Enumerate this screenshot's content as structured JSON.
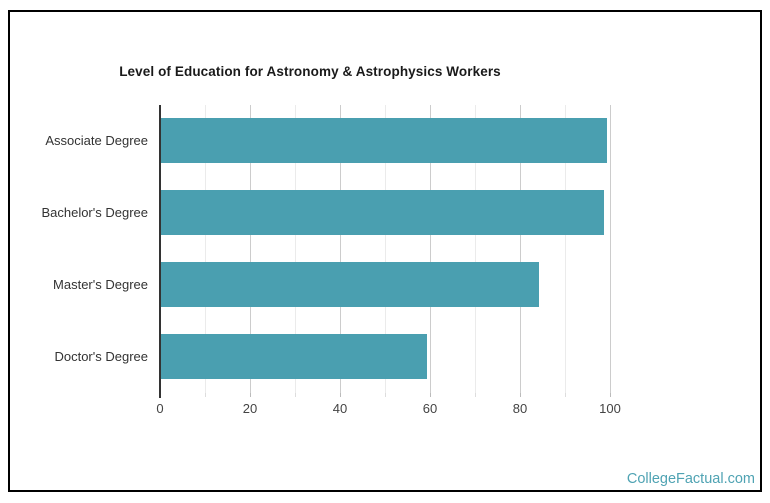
{
  "chart_data": {
    "type": "bar",
    "orientation": "horizontal",
    "title": "Level of Education for Astronomy & Astrophysics Workers",
    "categories": [
      "Associate Degree",
      "Bachelor's Degree",
      "Master's Degree",
      "Doctor's Degree"
    ],
    "values": [
      99,
      98.5,
      84,
      59
    ],
    "xlabel": "",
    "ylabel": "",
    "xlim": [
      0,
      110
    ],
    "xticks": [
      0,
      20,
      40,
      60,
      80,
      100
    ],
    "minor_grid_step": 10,
    "grid": "vertical",
    "legend_position": "none",
    "bar_color": "#4a9fb0"
  },
  "footer": {
    "brand": "CollegeFactual.com"
  },
  "colors": {
    "bar": "#4a9fb0",
    "axis_line": "#333333",
    "grid_major": "#cccccc",
    "grid_minor": "#ebebeb",
    "tick_label": "#444444",
    "category_label": "#333333",
    "title": "#1a1a1a",
    "frame_border": "#000000",
    "brand_link": "#4fa3b3",
    "background": "#ffffff"
  }
}
